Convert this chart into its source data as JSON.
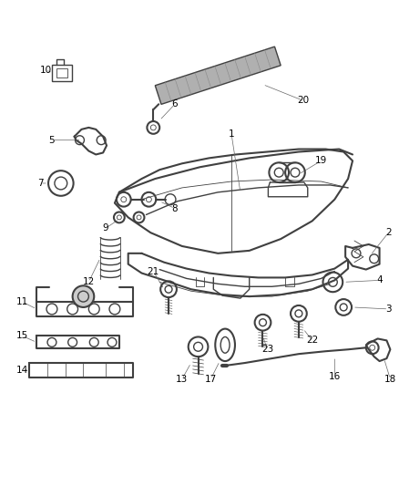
{
  "background_color": "#ffffff",
  "line_color": "#404040",
  "label_color": "#000000",
  "figsize": [
    4.38,
    5.33
  ],
  "dpi": 100
}
